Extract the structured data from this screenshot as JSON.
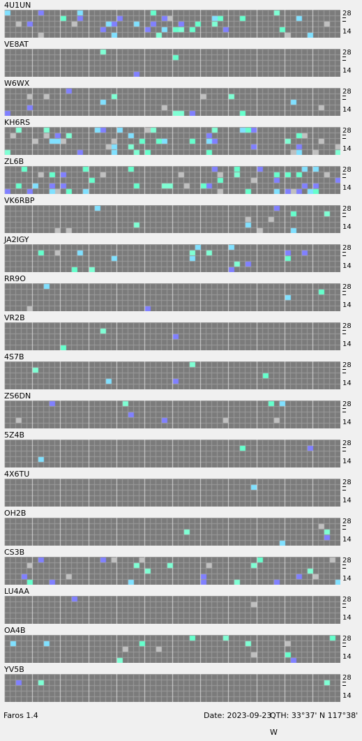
{
  "app": {
    "version_label": "Faros 1.4"
  },
  "status": {
    "date": "Date: 2023-09-23",
    "qth": "QTH: 33°37' N  117°38' W"
  },
  "scale": {
    "top": "28",
    "bottom": "14"
  },
  "colors": {
    "bg": "#7b7b7b",
    "cell": "#9a9a9a",
    "grid": "#f0f0f0",
    "strong": "#7fffd4",
    "medium": "#66ffcc",
    "weak": "#80e0ff",
    "faint": "#8080ff",
    "grey": "#c0c0c0"
  },
  "beacons": [
    {
      "call": "4U1UN"
    },
    {
      "call": "VE8AT"
    },
    {
      "call": "W6WX"
    },
    {
      "call": "KH6RS"
    },
    {
      "call": "ZL6B"
    },
    {
      "call": "VK6RBP"
    },
    {
      "call": "JA2IGY"
    },
    {
      "call": "RR9O"
    },
    {
      "call": "VR2B"
    },
    {
      "call": "4S7B"
    },
    {
      "call": "ZS6DN"
    },
    {
      "call": "5Z4B"
    },
    {
      "call": "4X6TU"
    },
    {
      "call": "OH2B"
    },
    {
      "call": "CS3B"
    },
    {
      "call": "LU4AA"
    },
    {
      "call": "OA4B"
    },
    {
      "call": "YV5B"
    }
  ]
}
